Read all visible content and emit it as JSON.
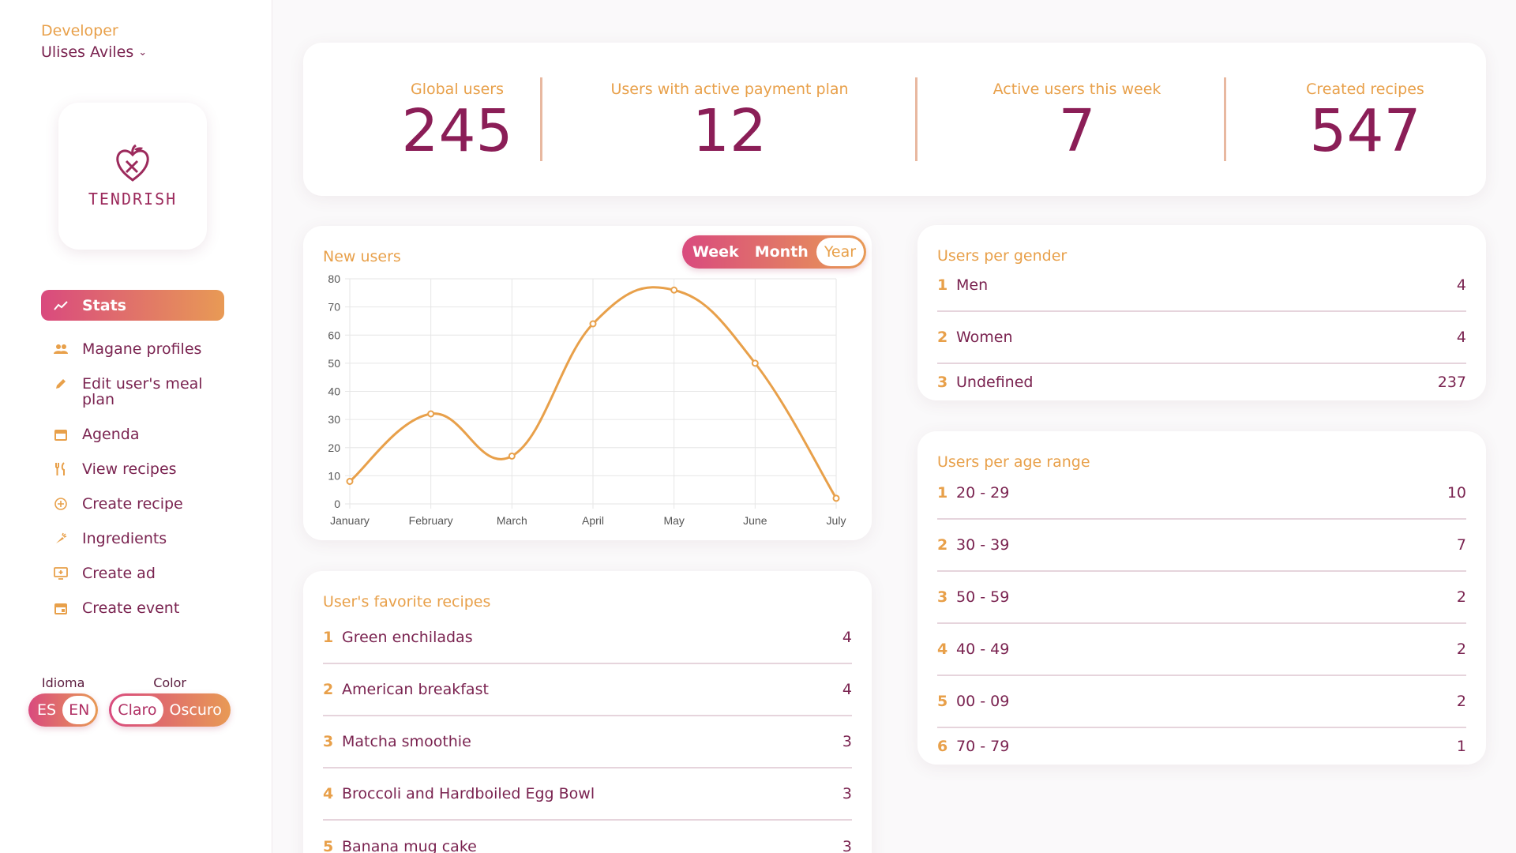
{
  "user": {
    "role": "Developer",
    "name": "Ulises Aviles"
  },
  "logo": {
    "text": "TENDRISH"
  },
  "nav": [
    {
      "label": "Stats",
      "icon": "trending-up-icon",
      "active": true
    },
    {
      "label": "Magane profiles",
      "icon": "users-icon"
    },
    {
      "label": "Edit user's meal plan",
      "icon": "pencil-icon"
    },
    {
      "label": "Agenda",
      "icon": "calendar-icon"
    },
    {
      "label": "View recipes",
      "icon": "utensils-icon"
    },
    {
      "label": "Create recipe",
      "icon": "plus-circle-icon"
    },
    {
      "label": "Ingredients",
      "icon": "carrot-icon"
    },
    {
      "label": "Create ad",
      "icon": "ad-icon"
    },
    {
      "label": "Create event",
      "icon": "calendar-plus-icon"
    }
  ],
  "language": {
    "label": "Idioma",
    "options": [
      "ES",
      "EN"
    ],
    "selected": "EN"
  },
  "theme": {
    "label": "Color",
    "options": [
      "Claro",
      "Oscuro"
    ],
    "selected": "Claro"
  },
  "stats": [
    {
      "label": "Global users",
      "value": "245"
    },
    {
      "label": "Users with active payment plan",
      "value": "12"
    },
    {
      "label": "Active users this week",
      "value": "7"
    },
    {
      "label": "Created recipes",
      "value": "547"
    }
  ],
  "new_users": {
    "title": "New users",
    "periods": [
      "Week",
      "Month",
      "Year"
    ],
    "selected_period": "Year"
  },
  "chart_data": {
    "type": "line",
    "title": "New users",
    "categories": [
      "January",
      "February",
      "March",
      "April",
      "May",
      "June",
      "July"
    ],
    "series": [
      {
        "values": [
          8,
          32,
          17,
          64,
          76,
          50,
          2
        ]
      }
    ],
    "ylim": [
      0,
      80
    ],
    "yticks": [
      0,
      10,
      20,
      30,
      40,
      50,
      60,
      70,
      80
    ],
    "grid": true,
    "color": "#e8a04a"
  },
  "favorite_recipes": {
    "title": "User's favorite recipes",
    "items": [
      {
        "rank": "1",
        "name": "Green enchiladas",
        "count": "4"
      },
      {
        "rank": "2",
        "name": "American breakfast",
        "count": "4"
      },
      {
        "rank": "3",
        "name": "Matcha smoothie",
        "count": "3"
      },
      {
        "rank": "4",
        "name": "Broccoli and Hardboiled Egg Bowl",
        "count": "3"
      },
      {
        "rank": "5",
        "name": "Banana mug cake",
        "count": "3"
      }
    ]
  },
  "users_per_gender": {
    "title": "Users per gender",
    "items": [
      {
        "rank": "1",
        "name": "Men",
        "count": "4"
      },
      {
        "rank": "2",
        "name": "Women",
        "count": "4"
      },
      {
        "rank": "3",
        "name": "Undefined",
        "count": "237"
      }
    ]
  },
  "users_per_age": {
    "title": "Users per age range",
    "items": [
      {
        "rank": "1",
        "name": "20 - 29",
        "count": "10"
      },
      {
        "rank": "2",
        "name": "30 - 39",
        "count": "7"
      },
      {
        "rank": "3",
        "name": "50 - 59",
        "count": "2"
      },
      {
        "rank": "4",
        "name": "40 - 49",
        "count": "2"
      },
      {
        "rank": "5",
        "name": "00 - 09",
        "count": "2"
      },
      {
        "rank": "6",
        "name": "70 - 79",
        "count": "1"
      }
    ]
  }
}
